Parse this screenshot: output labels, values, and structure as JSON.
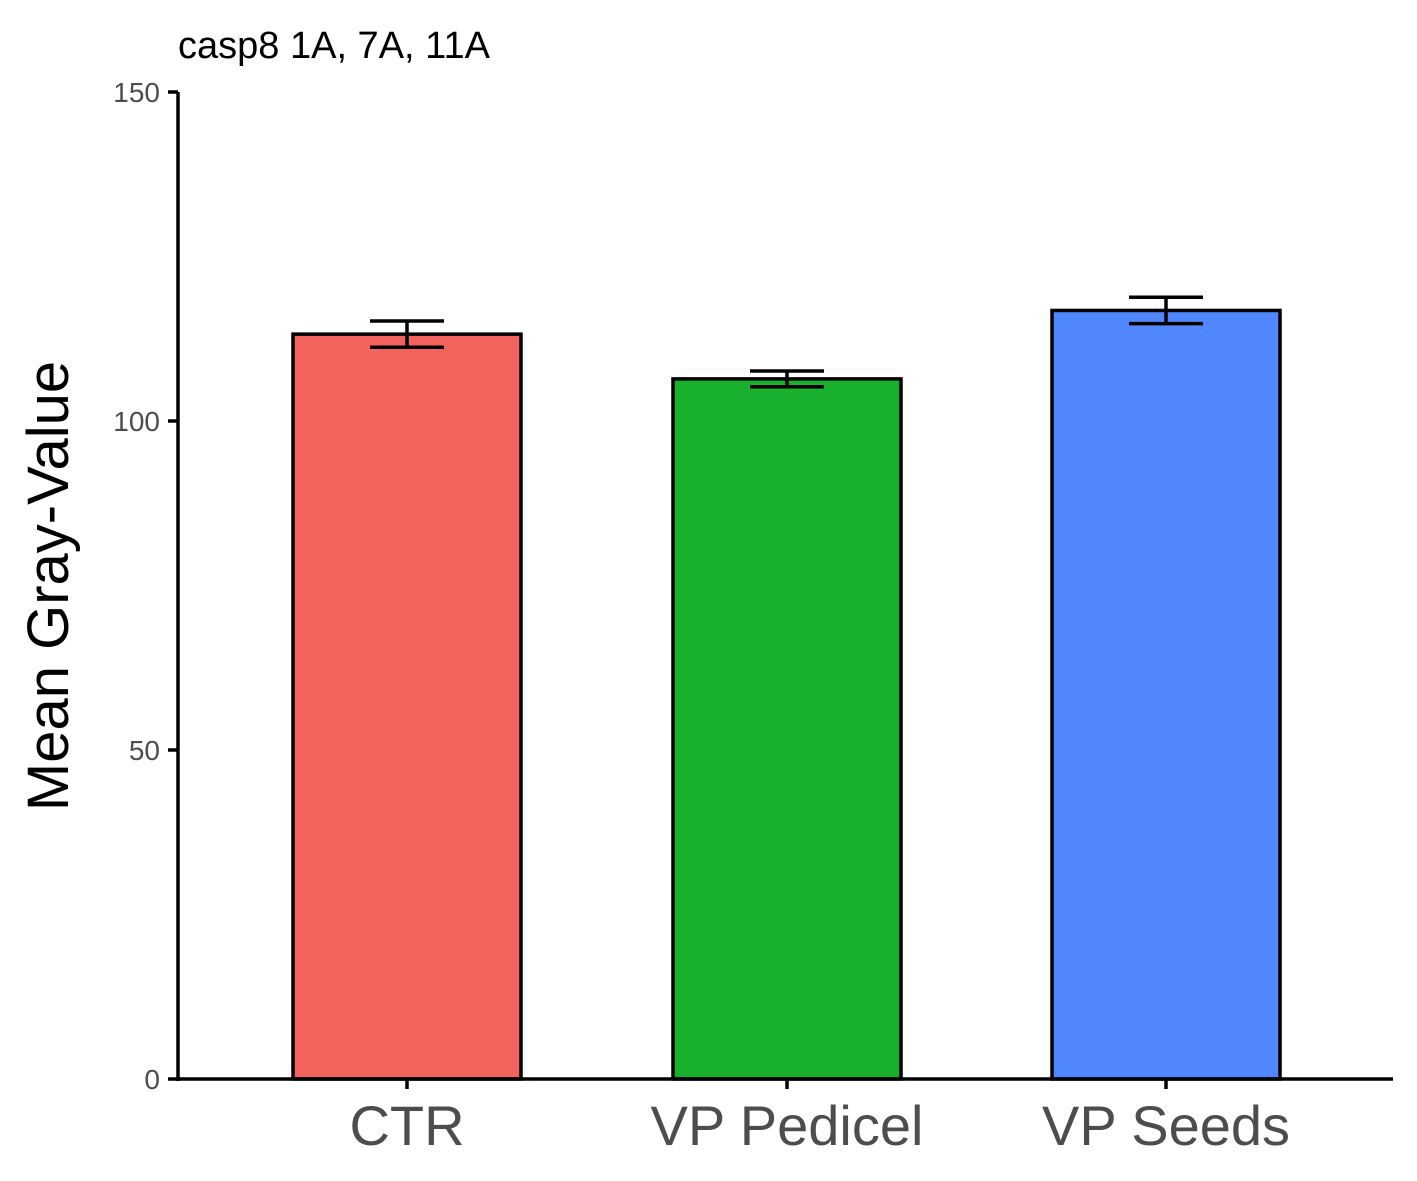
{
  "chart_data": {
    "type": "bar",
    "title": "casp8 1A, 7A, 11A",
    "xlabel": "",
    "ylabel": "Mean Gray-Value",
    "categories": [
      "CTR",
      "VP Pedicel",
      "VP Seeds"
    ],
    "values": [
      113.2,
      106.4,
      116.8
    ],
    "error": [
      2.0,
      1.2,
      2.0
    ],
    "colors": [
      "#F3635E",
      "#19B02D",
      "#5087FE"
    ],
    "ylim": [
      0,
      150
    ],
    "yticks": [
      0,
      50,
      100,
      150
    ],
    "grid": false,
    "legend": "none"
  }
}
